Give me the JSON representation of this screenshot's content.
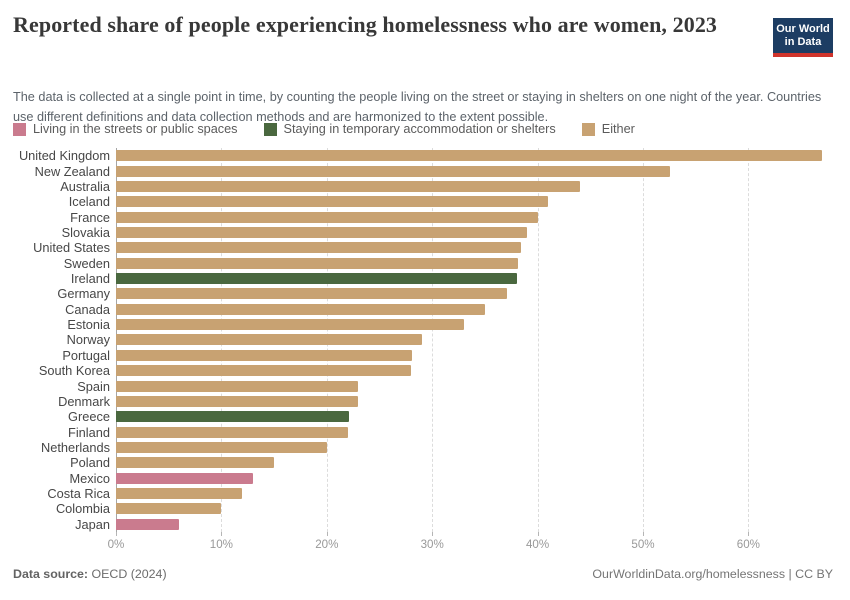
{
  "header": {
    "title": "Reported share of people experiencing homelessness who are women, 2023",
    "subtitle": "The data is collected at a single point in time, by counting the people living on the street or staying in shelters on one night of the year. Countries use different definitions and data collection methods and are harmonized to the extent possible.",
    "logo_line1": "Our World",
    "logo_line2": "in Data"
  },
  "legend": {
    "items": [
      {
        "label": "Living in the streets or public spaces",
        "series": "street"
      },
      {
        "label": "Staying in temporary accommodation or shelters",
        "series": "shelter"
      },
      {
        "label": "Either",
        "series": "either"
      }
    ]
  },
  "colors": {
    "street": "#ca7b8e",
    "shelter": "#4a683f",
    "either": "#c8a272",
    "logo_bg": "#1d3d63",
    "logo_stripe": "#d0342c"
  },
  "chart_data": {
    "type": "bar",
    "orientation": "horizontal",
    "unit": "%",
    "xlim": [
      0,
      68
    ],
    "xticks": [
      0,
      10,
      20,
      30,
      40,
      50,
      60
    ],
    "xtick_labels": [
      "0%",
      "10%",
      "20%",
      "30%",
      "40%",
      "50%",
      "60%"
    ],
    "grid": "vertical-dashed",
    "legend_position": "top",
    "bars": [
      {
        "country": "United Kingdom",
        "value": 67,
        "series": "either"
      },
      {
        "country": "New Zealand",
        "value": 52.6,
        "series": "either"
      },
      {
        "country": "Australia",
        "value": 44,
        "series": "either"
      },
      {
        "country": "Iceland",
        "value": 41,
        "series": "either"
      },
      {
        "country": "France",
        "value": 40,
        "series": "either"
      },
      {
        "country": "Slovakia",
        "value": 39,
        "series": "either"
      },
      {
        "country": "United States",
        "value": 38.4,
        "series": "either"
      },
      {
        "country": "Sweden",
        "value": 38.1,
        "series": "either"
      },
      {
        "country": "Ireland",
        "value": 38,
        "series": "shelter"
      },
      {
        "country": "Germany",
        "value": 37.1,
        "series": "either"
      },
      {
        "country": "Canada",
        "value": 35,
        "series": "either"
      },
      {
        "country": "Estonia",
        "value": 33,
        "series": "either"
      },
      {
        "country": "Norway",
        "value": 29,
        "series": "either"
      },
      {
        "country": "Portugal",
        "value": 28.1,
        "series": "either"
      },
      {
        "country": "South Korea",
        "value": 28,
        "series": "either"
      },
      {
        "country": "Spain",
        "value": 23,
        "series": "either"
      },
      {
        "country": "Denmark",
        "value": 23,
        "series": "either"
      },
      {
        "country": "Greece",
        "value": 22.1,
        "series": "shelter"
      },
      {
        "country": "Finland",
        "value": 22,
        "series": "either"
      },
      {
        "country": "Netherlands",
        "value": 20,
        "series": "either"
      },
      {
        "country": "Poland",
        "value": 15,
        "series": "either"
      },
      {
        "country": "Mexico",
        "value": 13,
        "series": "street"
      },
      {
        "country": "Costa Rica",
        "value": 12,
        "series": "either"
      },
      {
        "country": "Colombia",
        "value": 10,
        "series": "either"
      },
      {
        "country": "Japan",
        "value": 6,
        "series": "street"
      }
    ]
  },
  "footer": {
    "source_label": "Data source:",
    "source_value": "OECD (2024)",
    "link": "OurWorldinData.org/homelessness | CC BY"
  }
}
